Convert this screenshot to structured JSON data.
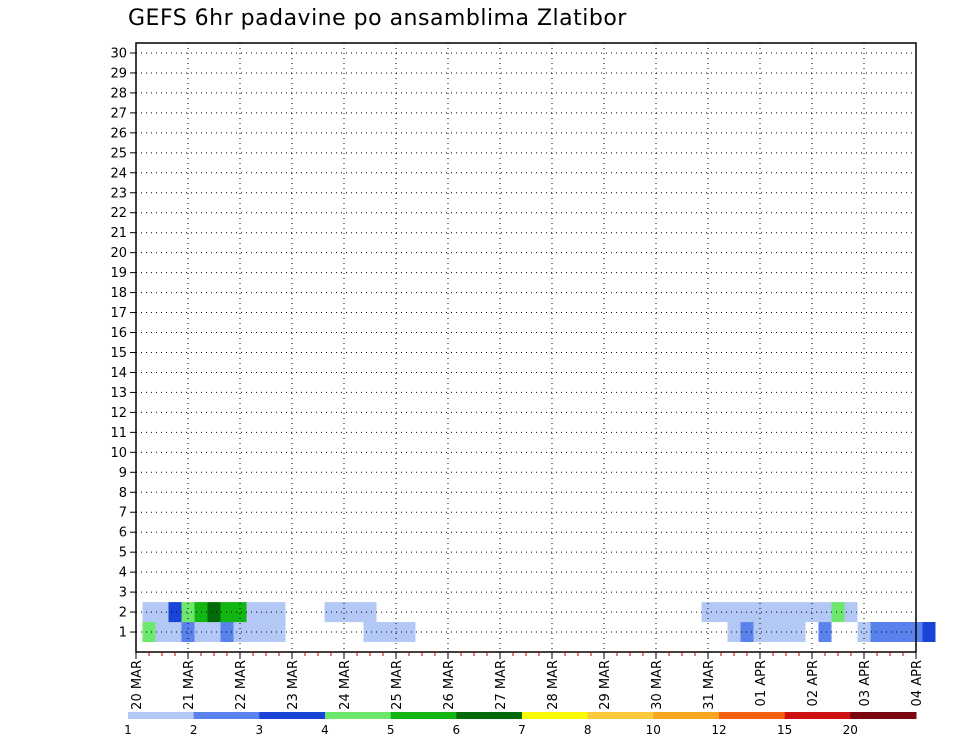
{
  "chart_data": {
    "type": "heatmap",
    "title": "GEFS 6hr padavine po ansamblima Zlatibor",
    "xlabel": "",
    "ylabel": "",
    "x_ticks": [
      "20 MAR",
      "21 MAR",
      "22 MAR",
      "23 MAR",
      "24 MAR",
      "25 MAR",
      "26 MAR",
      "27 MAR",
      "28 MAR",
      "29 MAR",
      "30 MAR",
      "31 MAR",
      "01 APR",
      "02 APR",
      "03 APR",
      "04 APR"
    ],
    "y_ticks": [
      "1",
      "2",
      "3",
      "4",
      "5",
      "6",
      "7",
      "8",
      "9",
      "10",
      "11",
      "12",
      "13",
      "14",
      "15",
      "16",
      "17",
      "18",
      "19",
      "20",
      "21",
      "22",
      "23",
      "24",
      "25",
      "26",
      "27",
      "28",
      "29",
      "30"
    ],
    "xlim": [
      "20 MAR 00",
      "04 APR 00"
    ],
    "ylim": [
      0,
      30
    ],
    "time_step": "6hr",
    "grid": "dotted",
    "legend": {
      "position": "bottom",
      "thresholds": [
        "1",
        "2",
        "3",
        "4",
        "5",
        "6",
        "7",
        "8",
        "10",
        "12",
        "15",
        "20"
      ],
      "colors": [
        "#b4c8f5",
        "#5a82ec",
        "#1a44d8",
        "#6de86d",
        "#12b512",
        "#046b0a",
        "#fafa04",
        "#fcc83c",
        "#fba51e",
        "#f56010",
        "#cf1010",
        "#7a0410"
      ]
    },
    "cell_class_index_note": "",
    "cells": [
      [
        1,
        1,
        4
      ],
      [
        1,
        2,
        1
      ],
      [
        1,
        3,
        1
      ],
      [
        1,
        4,
        2
      ],
      [
        1,
        5,
        1
      ],
      [
        1,
        6,
        1
      ],
      [
        1,
        7,
        2
      ],
      [
        1,
        8,
        1
      ],
      [
        1,
        9,
        1
      ],
      [
        1,
        10,
        1
      ],
      [
        1,
        11,
        1
      ],
      [
        1,
        18,
        1
      ],
      [
        1,
        19,
        1
      ],
      [
        1,
        20,
        1
      ],
      [
        1,
        21,
        1
      ],
      [
        1,
        46,
        1
      ],
      [
        1,
        47,
        2
      ],
      [
        1,
        48,
        1
      ],
      [
        1,
        49,
        1
      ],
      [
        1,
        50,
        1
      ],
      [
        1,
        51,
        1
      ],
      [
        1,
        53,
        2
      ],
      [
        1,
        56,
        1
      ],
      [
        1,
        57,
        2
      ],
      [
        1,
        58,
        2
      ],
      [
        1,
        59,
        2
      ],
      [
        1,
        60,
        2
      ],
      [
        1,
        61,
        3
      ],
      [
        2,
        1,
        1
      ],
      [
        2,
        2,
        1
      ],
      [
        2,
        3,
        3
      ],
      [
        2,
        4,
        4
      ],
      [
        2,
        5,
        5
      ],
      [
        2,
        6,
        6
      ],
      [
        2,
        7,
        5
      ],
      [
        2,
        8,
        5
      ],
      [
        2,
        9,
        1
      ],
      [
        2,
        10,
        1
      ],
      [
        2,
        11,
        1
      ],
      [
        2,
        15,
        1
      ],
      [
        2,
        16,
        1
      ],
      [
        2,
        17,
        1
      ],
      [
        2,
        18,
        1
      ],
      [
        2,
        44,
        1
      ],
      [
        2,
        45,
        1
      ],
      [
        2,
        46,
        1
      ],
      [
        2,
        47,
        1
      ],
      [
        2,
        48,
        1
      ],
      [
        2,
        49,
        1
      ],
      [
        2,
        50,
        1
      ],
      [
        2,
        51,
        1
      ],
      [
        2,
        52,
        1
      ],
      [
        2,
        53,
        1
      ],
      [
        2,
        54,
        4
      ],
      [
        2,
        55,
        1
      ]
    ]
  },
  "colorbar_labels": [
    "1",
    "2",
    "3",
    "4",
    "5",
    "6",
    "7",
    "8",
    "10",
    "12",
    "15",
    "20"
  ]
}
